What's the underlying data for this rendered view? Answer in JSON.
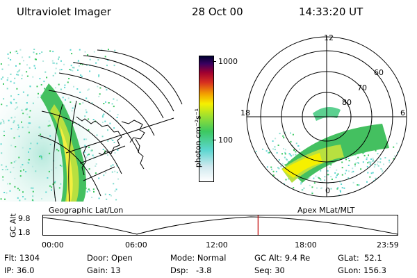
{
  "header": {
    "title": "Ultraviolet Imager",
    "date": "28 Oct 00",
    "time": "14:33:20 UT"
  },
  "colorbar": {
    "label": "photon cm⁻²s⁻¹",
    "ticks": [
      "1000",
      "100"
    ],
    "scale": "log",
    "colors": [
      "#ffffff",
      "#cfe8ee",
      "#5cd6d0",
      "#3cc860",
      "#9de030",
      "#f6f000",
      "#f3a000",
      "#d83020",
      "#a00030",
      "#3a0060",
      "#000030"
    ]
  },
  "geo_panel": {
    "label": "Geographic Lat/Lon"
  },
  "polar_panel": {
    "label": "Apex MLat/MLT",
    "mlt_labels": [
      "12",
      "18",
      "6",
      "0"
    ],
    "mlat_labels": [
      "60",
      "70",
      "80"
    ]
  },
  "timeline": {
    "ylabel": "GC Alt",
    "y_ticks": [
      "9.8",
      "1.8"
    ],
    "x_ticks": [
      "00:00",
      "06:00",
      "12:00",
      "18:00",
      "23:59"
    ],
    "current_time_fraction": 0.6065,
    "marker_color": "#c00000"
  },
  "info": {
    "flt": "Flt: 1304",
    "ip": "IP: 36.0",
    "door": "Door: Open",
    "gain": "Gain: 13",
    "mode": "Mode: Normal",
    "dsp": "Dsp:   -3.8",
    "gc_alt": "GC Alt: 9.4 Re",
    "seq": "Seq: 30",
    "glat": "GLat:  52.1",
    "glon": "GLon: 156.3"
  }
}
